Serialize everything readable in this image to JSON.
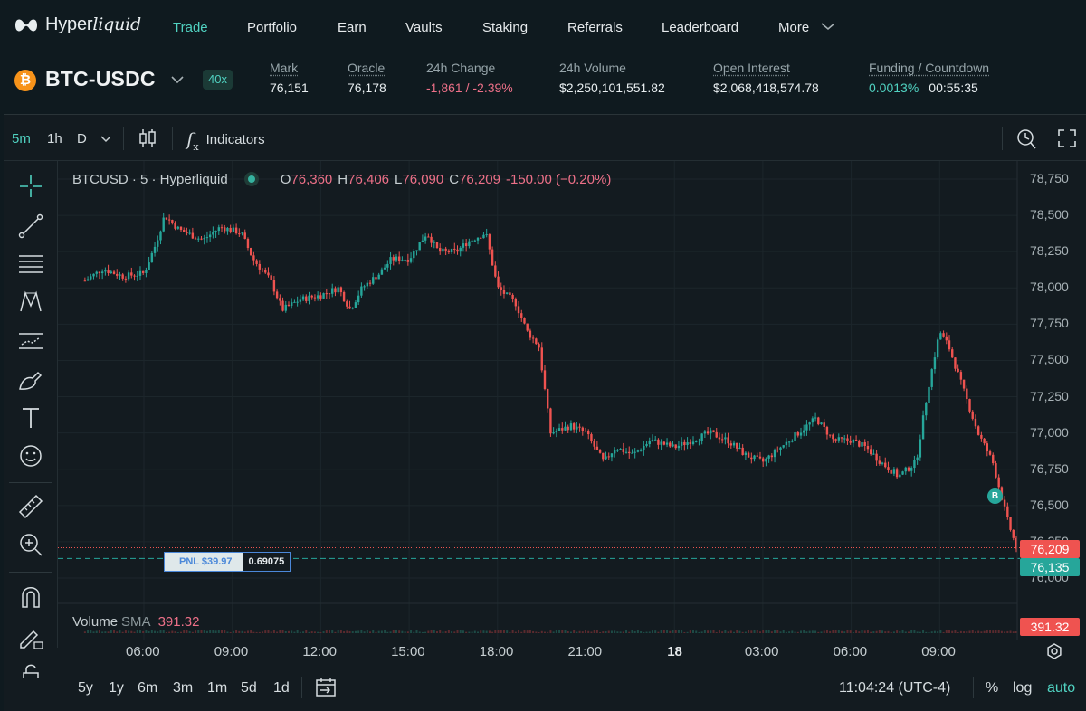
{
  "nav": {
    "brand_main": "Hyper",
    "brand_italic": "liquid",
    "items": [
      {
        "label": "Trade",
        "active": true
      },
      {
        "label": "Portfolio"
      },
      {
        "label": "Earn"
      },
      {
        "label": "Vaults"
      },
      {
        "label": "Staking"
      },
      {
        "label": "Referrals"
      },
      {
        "label": "Leaderboard"
      },
      {
        "label": "More"
      }
    ]
  },
  "ticker": {
    "coin_glyph": "₿",
    "pair": "BTC-USDC",
    "leverage": "40x",
    "stats": [
      {
        "label": "Mark",
        "value": "76,151"
      },
      {
        "label": "Oracle",
        "value": "76,178"
      },
      {
        "label": "24h Change",
        "value": "-1,861 / -2.39%"
      },
      {
        "label": "24h Volume",
        "value": "$2,250,101,551.82"
      },
      {
        "label": "Open Interest",
        "value": "$2,068,418,574.78"
      },
      {
        "label": "Funding / Countdown",
        "value": "0.0013%",
        "value2": "00:55:35"
      }
    ]
  },
  "toolbar": {
    "intervals": [
      "5m",
      "1h",
      "D"
    ],
    "indicators_label": "Indicators"
  },
  "legend": {
    "symbol": "BTCUSD · 5 · Hyperliquid",
    "open_key": "O",
    "open": "76,360",
    "high_key": "H",
    "high": "76,406",
    "low_key": "L",
    "low": "76,090",
    "close_key": "C",
    "close": "76,209",
    "change": "-150.00 (−0.20%)"
  },
  "chart_data": {
    "type": "candlestick",
    "title": "BTCUSD · 5 · Hyperliquid",
    "ylim": [
      75900,
      78850
    ],
    "y_ticks": [
      "78,750",
      "78,500",
      "78,250",
      "78,000",
      "77,750",
      "77,500",
      "77,250",
      "77,000",
      "76,750",
      "76,500",
      "76,250",
      "76,000"
    ],
    "y_tick_values": [
      78750,
      78500,
      78250,
      78000,
      77750,
      77500,
      77250,
      77000,
      76750,
      76500,
      76250,
      76000
    ],
    "x_ticks": [
      "06:00",
      "09:00",
      "12:00",
      "15:00",
      "18:00",
      "21:00",
      "18",
      "03:00",
      "06:00",
      "09:00"
    ],
    "x_tick_hours": [
      6,
      9,
      12,
      15,
      18,
      21,
      24,
      27,
      30,
      33
    ],
    "price_path": [
      [
        4.0,
        78050
      ],
      [
        4.6,
        78130
      ],
      [
        5.3,
        78080
      ],
      [
        6.0,
        78100
      ],
      [
        6.4,
        78300
      ],
      [
        6.7,
        78500
      ],
      [
        7.2,
        78400
      ],
      [
        8.0,
        78330
      ],
      [
        8.6,
        78420
      ],
      [
        9.3,
        78380
      ],
      [
        9.7,
        78200
      ],
      [
        10.3,
        78050
      ],
      [
        10.7,
        77850
      ],
      [
        11.3,
        77920
      ],
      [
        12.0,
        77950
      ],
      [
        12.6,
        78000
      ],
      [
        13.0,
        77850
      ],
      [
        13.4,
        78000
      ],
      [
        14.0,
        78100
      ],
      [
        14.4,
        78200
      ],
      [
        15.0,
        78200
      ],
      [
        15.6,
        78380
      ],
      [
        16.0,
        78250
      ],
      [
        16.6,
        78250
      ],
      [
        17.0,
        78320
      ],
      [
        17.6,
        78380
      ],
      [
        18.0,
        78000
      ],
      [
        18.6,
        77900
      ],
      [
        19.0,
        77700
      ],
      [
        19.4,
        77600
      ],
      [
        19.8,
        77000
      ],
      [
        20.5,
        77050
      ],
      [
        21.0,
        77000
      ],
      [
        21.6,
        76800
      ],
      [
        22.0,
        76900
      ],
      [
        22.6,
        76850
      ],
      [
        23.2,
        76950
      ],
      [
        24.0,
        76900
      ],
      [
        24.6,
        76950
      ],
      [
        25.2,
        77000
      ],
      [
        25.8,
        76950
      ],
      [
        26.4,
        76850
      ],
      [
        27.0,
        76800
      ],
      [
        27.6,
        76900
      ],
      [
        28.2,
        77000
      ],
      [
        28.8,
        77100
      ],
      [
        29.4,
        76950
      ],
      [
        30.0,
        76950
      ],
      [
        30.5,
        76900
      ],
      [
        31.0,
        76800
      ],
      [
        31.6,
        76700
      ],
      [
        32.2,
        76800
      ],
      [
        32.6,
        77300
      ],
      [
        33.0,
        77700
      ],
      [
        33.3,
        77600
      ],
      [
        33.8,
        77300
      ],
      [
        34.3,
        77000
      ],
      [
        34.8,
        76800
      ],
      [
        35.3,
        76400
      ],
      [
        35.6,
        76209
      ]
    ],
    "last_price": 76209,
    "position_price": 76135,
    "volume_sma": "391.32"
  },
  "price_labels": {
    "last": "76,209",
    "position": "76,135",
    "volume": "391.32"
  },
  "position": {
    "pnl": "PNL $39.97",
    "size": "0.69075",
    "marker": "B"
  },
  "volume": {
    "label": "Volume",
    "sma_label": "SMA",
    "sma_value": "391.32"
  },
  "bottom": {
    "ranges": [
      "5y",
      "1y",
      "6m",
      "3m",
      "1m",
      "5d",
      "1d"
    ],
    "clock": "11:04:24 (UTC-4)",
    "percent": "%",
    "log": "log",
    "auto": "auto"
  },
  "colors": {
    "up": "#26a69a",
    "down": "#ef5350",
    "accent": "#50d2c1",
    "negative": "#ed7088"
  }
}
